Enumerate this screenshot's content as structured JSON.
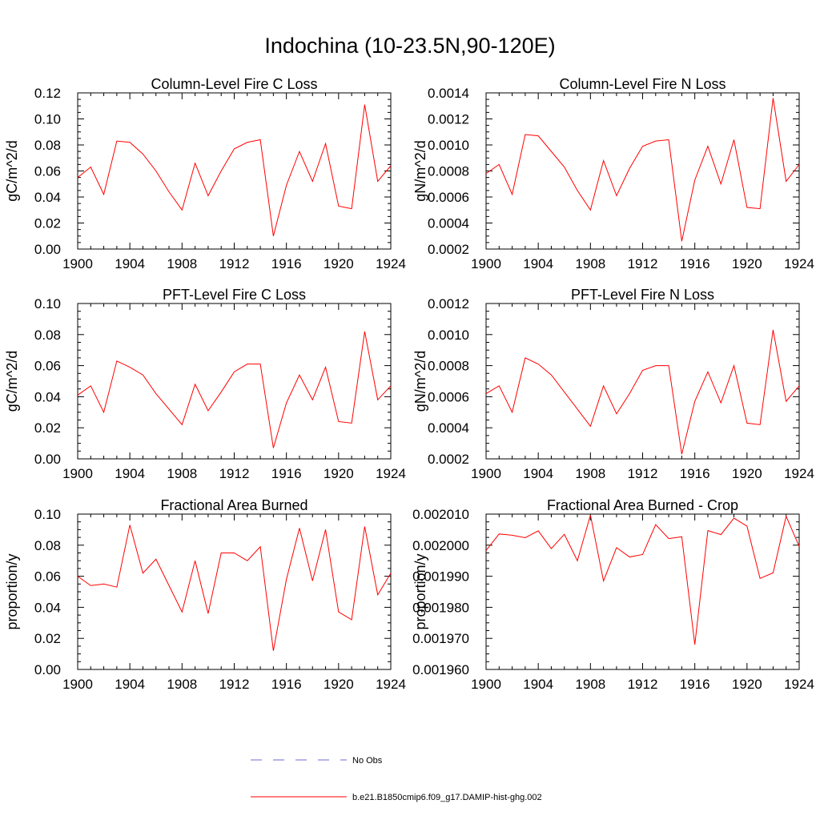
{
  "page": {
    "title": "Indochina (10-23.5N,90-120E)"
  },
  "colors": {
    "model": "#ff0000",
    "obs": "#6b6bd6"
  },
  "legend": {
    "items": [
      {
        "label": "No Obs",
        "style": "dashed",
        "color": "#6b6bd6"
      },
      {
        "label": "b.e21.B1850cmip6.f09_g17.DAMIP-hist-ghg.002",
        "style": "solid",
        "color": "#ff0000"
      }
    ]
  },
  "chart_data": [
    {
      "type": "line",
      "title": "Column-Level Fire C Loss",
      "ylabel": "gC/m^2/d",
      "xlim": [
        1900,
        1924
      ],
      "ylim": [
        0,
        0.12
      ],
      "xticks": [
        "1900",
        "1904",
        "1908",
        "1912",
        "1916",
        "1920",
        "1924"
      ],
      "yticks": [
        "0.00",
        "0.02",
        "0.04",
        "0.06",
        "0.08",
        "0.10",
        "0.12"
      ],
      "x": [
        1900,
        1901,
        1902,
        1903,
        1904,
        1905,
        1906,
        1907,
        1908,
        1909,
        1910,
        1911,
        1912,
        1913,
        1914,
        1915,
        1916,
        1917,
        1918,
        1919,
        1920,
        1921,
        1922,
        1923,
        1924
      ],
      "series": [
        {
          "values": [
            0.055,
            0.063,
            0.042,
            0.083,
            0.082,
            0.073,
            0.06,
            0.044,
            0.03,
            0.066,
            0.041,
            0.06,
            0.077,
            0.082,
            0.084,
            0.01,
            0.049,
            0.075,
            0.052,
            0.081,
            0.033,
            0.031,
            0.111,
            0.052,
            0.064
          ]
        }
      ]
    },
    {
      "type": "line",
      "title": "Column-Level Fire N Loss",
      "ylabel": "gN/m^2/d",
      "xlim": [
        1900,
        1924
      ],
      "ylim": [
        0.0002,
        0.0014
      ],
      "xticks": [
        "1900",
        "1904",
        "1908",
        "1912",
        "1916",
        "1920",
        "1924"
      ],
      "yticks": [
        "0.0002",
        "0.0004",
        "0.0006",
        "0.0008",
        "0.0010",
        "0.0012",
        "0.0014"
      ],
      "x": [
        1900,
        1901,
        1902,
        1903,
        1904,
        1905,
        1906,
        1907,
        1908,
        1909,
        1910,
        1911,
        1912,
        1913,
        1914,
        1915,
        1916,
        1917,
        1918,
        1919,
        1920,
        1921,
        1922,
        1923,
        1924
      ],
      "series": [
        {
          "values": [
            0.00078,
            0.00085,
            0.00062,
            0.00108,
            0.00107,
            0.00095,
            0.00083,
            0.00065,
            0.0005,
            0.00088,
            0.00061,
            0.00082,
            0.00099,
            0.00103,
            0.00104,
            0.00026,
            0.00073,
            0.00099,
            0.0007,
            0.00104,
            0.00052,
            0.00051,
            0.00136,
            0.00072,
            0.00085
          ]
        }
      ]
    },
    {
      "type": "line",
      "title": "PFT-Level Fire C Loss",
      "ylabel": "gC/m^2/d",
      "xlim": [
        1900,
        1924
      ],
      "ylim": [
        0,
        0.1
      ],
      "xticks": [
        "1900",
        "1904",
        "1908",
        "1912",
        "1916",
        "1920",
        "1924"
      ],
      "yticks": [
        "0.00",
        "0.02",
        "0.04",
        "0.06",
        "0.08",
        "0.10"
      ],
      "x": [
        1900,
        1901,
        1902,
        1903,
        1904,
        1905,
        1906,
        1907,
        1908,
        1909,
        1910,
        1911,
        1912,
        1913,
        1914,
        1915,
        1916,
        1917,
        1918,
        1919,
        1920,
        1921,
        1922,
        1923,
        1924
      ],
      "series": [
        {
          "values": [
            0.041,
            0.047,
            0.03,
            0.063,
            0.059,
            0.054,
            0.042,
            0.032,
            0.022,
            0.048,
            0.031,
            0.043,
            0.056,
            0.061,
            0.061,
            0.007,
            0.036,
            0.054,
            0.038,
            0.059,
            0.024,
            0.023,
            0.082,
            0.038,
            0.047
          ]
        }
      ]
    },
    {
      "type": "line",
      "title": "PFT-Level Fire N Loss",
      "ylabel": "gN/m^2/d",
      "xlim": [
        1900,
        1924
      ],
      "ylim": [
        0.0002,
        0.0012
      ],
      "xticks": [
        "1900",
        "1904",
        "1908",
        "1912",
        "1916",
        "1920",
        "1924"
      ],
      "yticks": [
        "0.0002",
        "0.0004",
        "0.0006",
        "0.0008",
        "0.0010",
        "0.0012"
      ],
      "x": [
        1900,
        1901,
        1902,
        1903,
        1904,
        1905,
        1906,
        1907,
        1908,
        1909,
        1910,
        1911,
        1912,
        1913,
        1914,
        1915,
        1916,
        1917,
        1918,
        1919,
        1920,
        1921,
        1922,
        1923,
        1924
      ],
      "series": [
        {
          "values": [
            0.00062,
            0.00067,
            0.0005,
            0.00085,
            0.00081,
            0.00074,
            0.00063,
            0.00052,
            0.00041,
            0.00067,
            0.00049,
            0.00062,
            0.00077,
            0.0008,
            0.0008,
            0.00023,
            0.00057,
            0.00076,
            0.00056,
            0.0008,
            0.00043,
            0.00042,
            0.00103,
            0.00057,
            0.00067
          ]
        }
      ]
    },
    {
      "type": "line",
      "title": "Fractional Area Burned",
      "ylabel": "proportion/y",
      "xlim": [
        1900,
        1924
      ],
      "ylim": [
        0,
        0.1
      ],
      "xticks": [
        "1900",
        "1904",
        "1908",
        "1912",
        "1916",
        "1920",
        "1924"
      ],
      "yticks": [
        "0.00",
        "0.02",
        "0.04",
        "0.06",
        "0.08",
        "0.10"
      ],
      "x": [
        1900,
        1901,
        1902,
        1903,
        1904,
        1905,
        1906,
        1907,
        1908,
        1909,
        1910,
        1911,
        1912,
        1913,
        1914,
        1915,
        1916,
        1917,
        1918,
        1919,
        1920,
        1921,
        1922,
        1923,
        1924
      ],
      "series": [
        {
          "values": [
            0.06,
            0.054,
            0.055,
            0.053,
            0.093,
            0.062,
            0.071,
            0.054,
            0.037,
            0.07,
            0.036,
            0.075,
            0.075,
            0.07,
            0.079,
            0.012,
            0.058,
            0.091,
            0.057,
            0.09,
            0.037,
            0.032,
            0.092,
            0.048,
            0.062
          ]
        }
      ]
    },
    {
      "type": "line",
      "title": "Fractional Area Burned - Crop",
      "ylabel": "proportion/y",
      "xlim": [
        1900,
        1924
      ],
      "ylim": [
        0.00196,
        0.00201
      ],
      "xticks": [
        "1900",
        "1904",
        "1908",
        "1912",
        "1916",
        "1920",
        "1924"
      ],
      "yticks": [
        "0.001960",
        "0.001970",
        "0.001980",
        "0.001990",
        "0.002000",
        "0.002010"
      ],
      "x": [
        1900,
        1901,
        1902,
        1903,
        1904,
        1905,
        1906,
        1907,
        1908,
        1909,
        1910,
        1911,
        1912,
        1913,
        1914,
        1915,
        1916,
        1917,
        1918,
        1919,
        1920,
        1921,
        1922,
        1923,
        1924
      ],
      "series": [
        {
          "values": [
            0.0019983,
            0.0020036,
            0.0020032,
            0.0020024,
            0.0020046,
            0.0019989,
            0.0020035,
            0.001995,
            0.0020097,
            0.0019885,
            0.0019992,
            0.0019962,
            0.001997,
            0.0020066,
            0.0020021,
            0.0020027,
            0.001968,
            0.0020047,
            0.0020034,
            0.0020087,
            0.0020061,
            0.0019893,
            0.0019911,
            0.0020093,
            0.0019996
          ]
        }
      ]
    }
  ]
}
